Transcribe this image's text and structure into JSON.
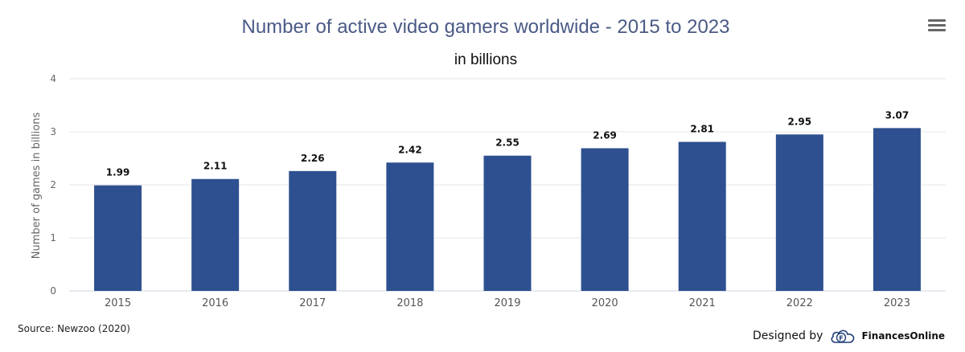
{
  "chart_data": {
    "type": "bar",
    "title": "Number of active video gamers worldwide - 2015 to 2023",
    "subtitle": "in billions",
    "ylabel": "Number of games in billions",
    "xlabel": "",
    "categories": [
      "2015",
      "2016",
      "2017",
      "2018",
      "2019",
      "2020",
      "2021",
      "2022",
      "2023"
    ],
    "values": [
      1.99,
      2.11,
      2.26,
      2.42,
      2.55,
      2.69,
      2.81,
      2.95,
      3.07
    ],
    "data_labels": [
      "1.99",
      "2.11",
      "2.26",
      "2.42",
      "2.55",
      "2.69",
      "2.81",
      "2.95",
      "3.07"
    ],
    "ylim": [
      0,
      4
    ],
    "yticks": [
      "0",
      "1",
      "2",
      "3",
      "4"
    ],
    "grid": true,
    "legend": "none",
    "bar_color": "#2e5090"
  },
  "footer": {
    "source": "Source: Newzoo (2020)",
    "designed_by": "Designed by",
    "brand": "FinancesOnline",
    "brand_icon": "cloud-f-logo"
  },
  "menu": {
    "icon": "hamburger-menu-icon"
  }
}
